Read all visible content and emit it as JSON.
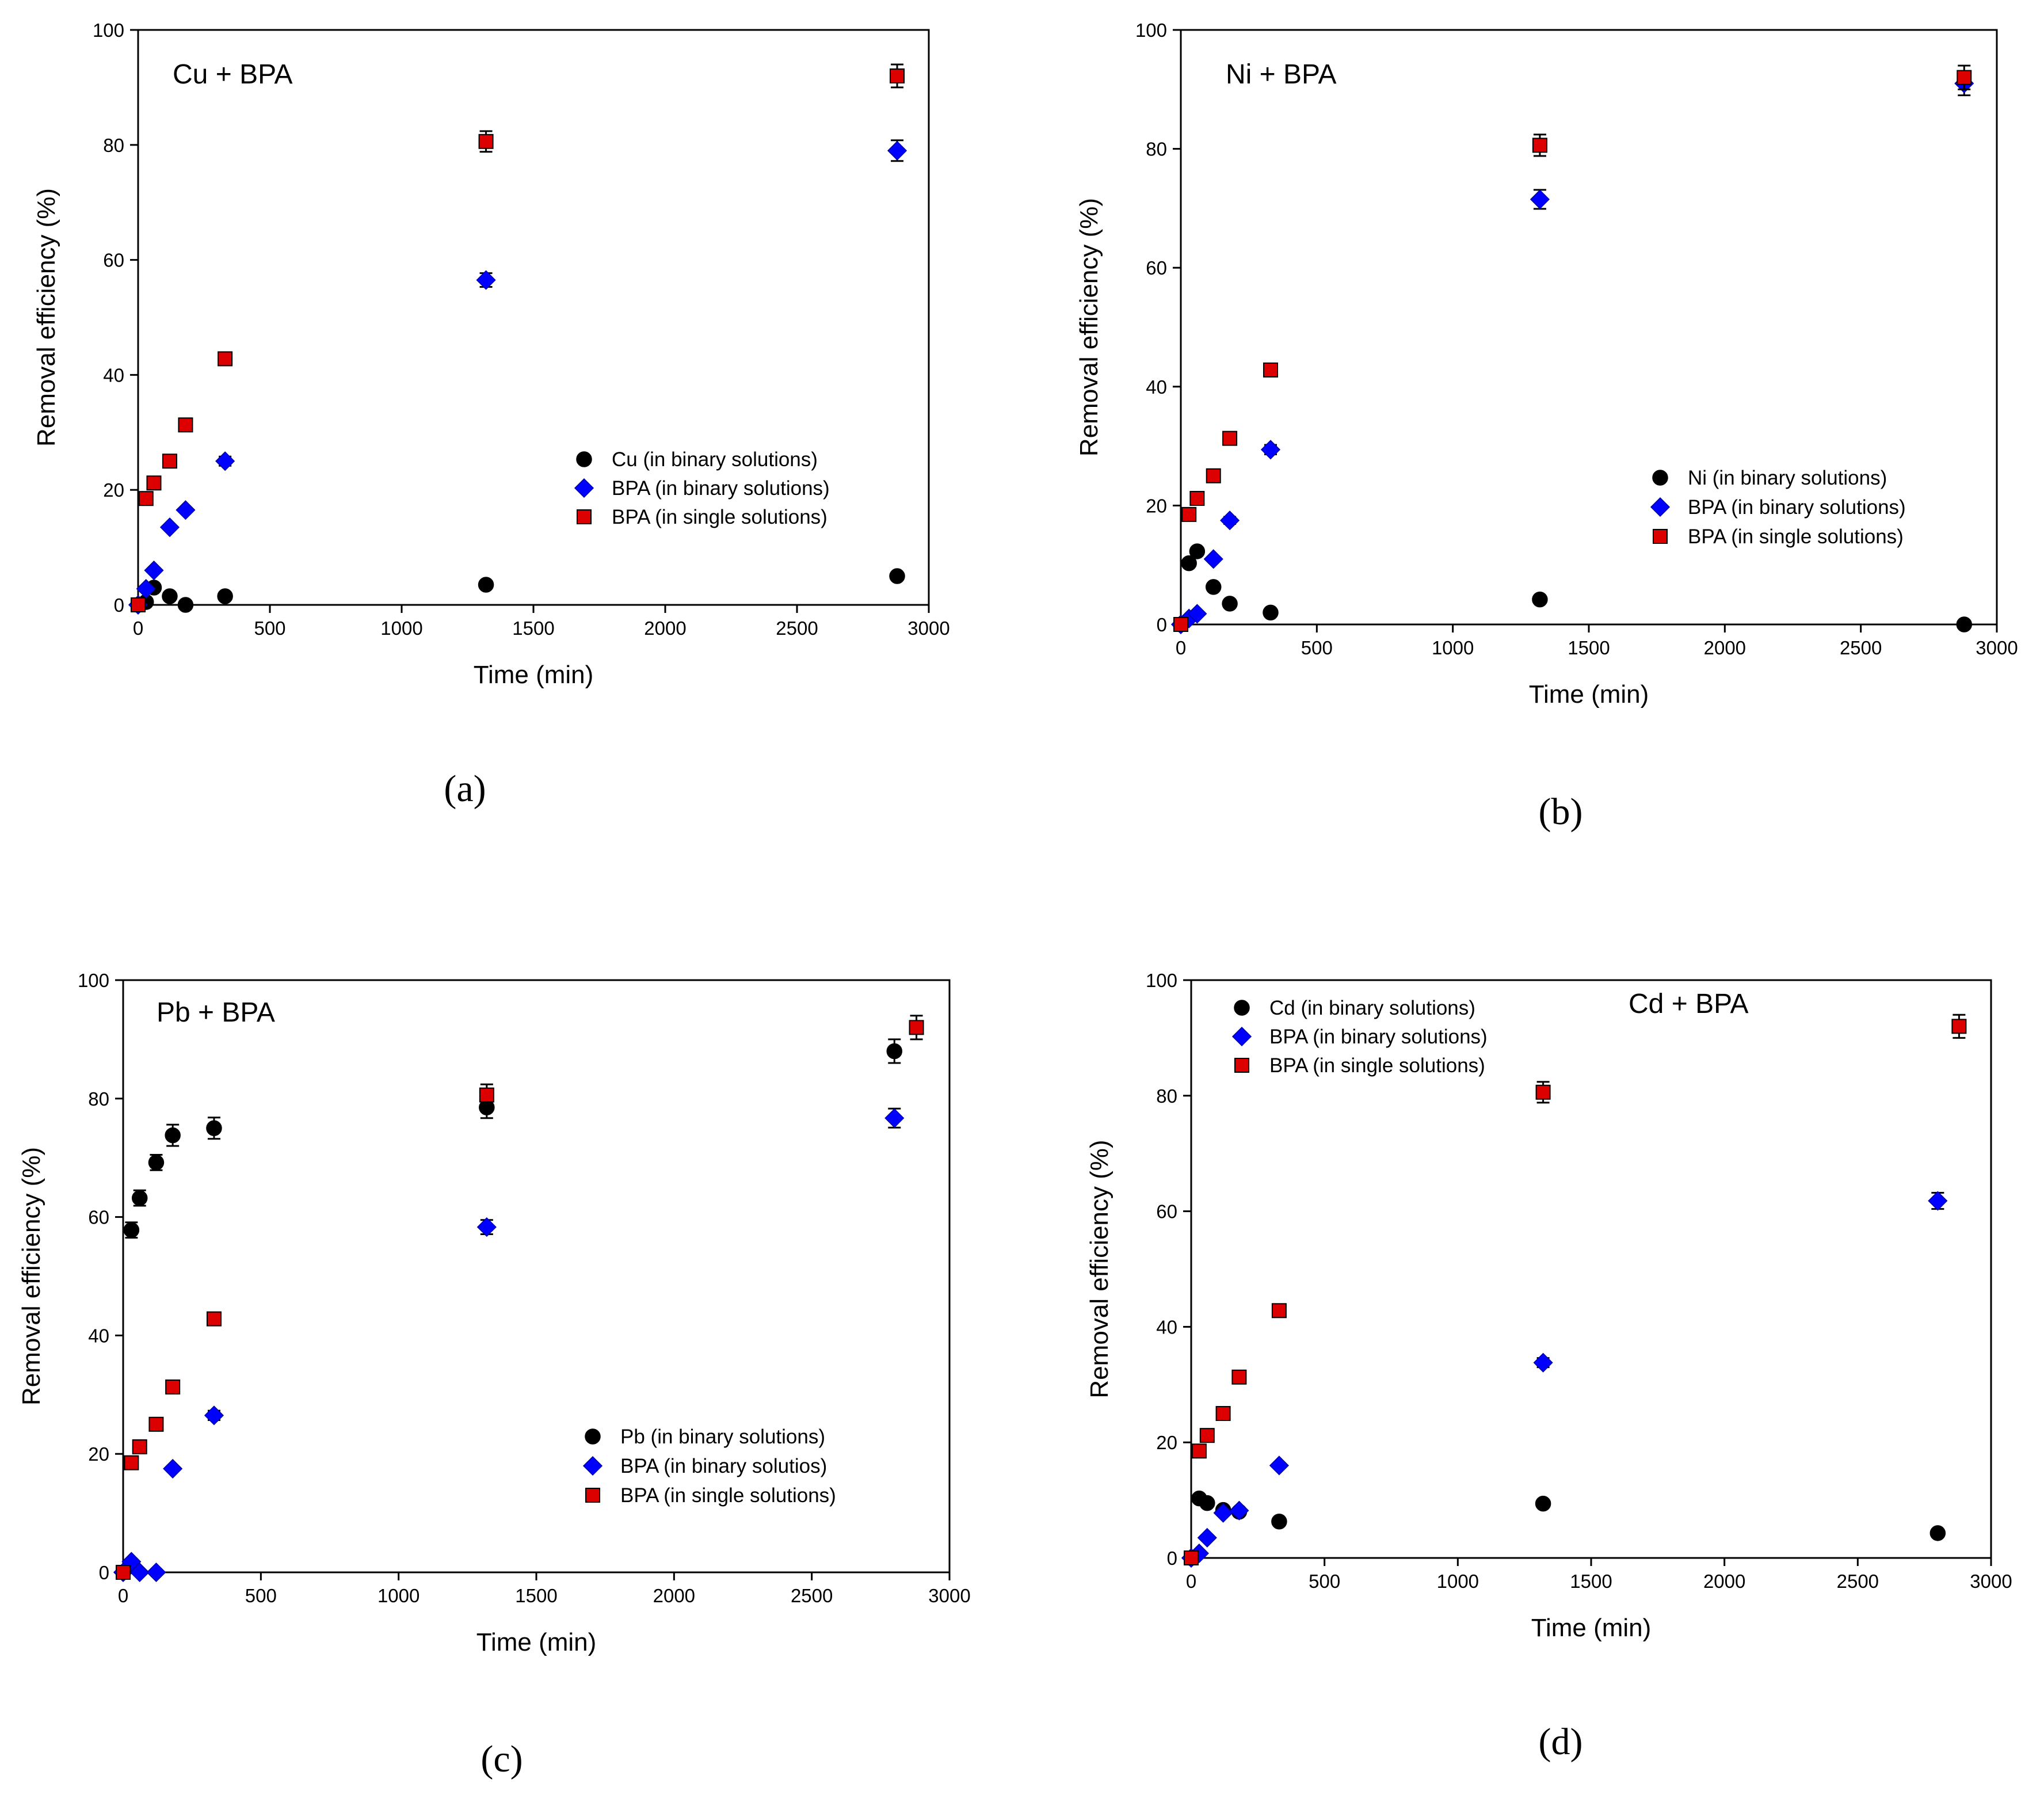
{
  "chart_data": [
    {
      "type": "scatter",
      "panel_label": "(a)",
      "title": "Cu + BPA",
      "xlabel": "Time (min)",
      "ylabel": "Removal efficiency (%)",
      "xlim": [
        0,
        3000
      ],
      "ylim": [
        0,
        100
      ],
      "xticks": [
        0,
        500,
        1000,
        1500,
        2000,
        2500,
        3000
      ],
      "yticks": [
        0,
        20,
        40,
        60,
        80,
        100
      ],
      "legend_position": "center-right",
      "series": [
        {
          "name": "Cu (in binary solutions)",
          "marker": "circle",
          "color": "#000000",
          "x": [
            0,
            30,
            60,
            120,
            180,
            330,
            1320,
            2880
          ],
          "y": [
            0,
            0.5,
            3,
            1.5,
            0,
            1.5,
            3.5,
            5
          ],
          "err": [
            0,
            0,
            0,
            0,
            0,
            0,
            0,
            0
          ]
        },
        {
          "name": "BPA (in binary solutions)",
          "marker": "diamond",
          "color": "#0000ff",
          "x": [
            0,
            30,
            60,
            120,
            180,
            330,
            1320,
            2880
          ],
          "y": [
            0,
            2.8,
            6,
            13.5,
            16.5,
            25,
            56.5,
            79
          ],
          "err": [
            0,
            0,
            0,
            0,
            0,
            0.8,
            1.2,
            1.8
          ]
        },
        {
          "name": "BPA (in single solutions)",
          "marker": "square",
          "color": "#dd0000",
          "x": [
            0,
            30,
            60,
            120,
            180,
            330,
            1320,
            2880
          ],
          "y": [
            0,
            18.5,
            21.2,
            25,
            31.3,
            42.8,
            80.6,
            92
          ],
          "err": [
            0,
            0.6,
            0.6,
            0.6,
            0.6,
            0.8,
            1.8,
            2
          ]
        }
      ]
    },
    {
      "type": "scatter",
      "panel_label": "(b)",
      "title": "Ni + BPA",
      "xlabel": "Time (min)",
      "ylabel": "Removal efficiency (%)",
      "xlim": [
        0,
        3000
      ],
      "ylim": [
        0,
        100
      ],
      "xticks": [
        0,
        500,
        1000,
        1500,
        2000,
        2500,
        3000
      ],
      "yticks": [
        0,
        20,
        40,
        60,
        80,
        100
      ],
      "legend_position": "center-right",
      "series": [
        {
          "name": "Ni (in binary solutions)",
          "marker": "circle",
          "color": "#000000",
          "x": [
            0,
            30,
            60,
            120,
            180,
            330,
            1320,
            2880
          ],
          "y": [
            0,
            10.3,
            12.3,
            6.3,
            3.5,
            2,
            4.2,
            0
          ],
          "err": [
            0,
            0.5,
            0.5,
            0,
            0,
            0,
            0,
            0
          ]
        },
        {
          "name": "BPA (in binary solutions)",
          "marker": "diamond",
          "color": "#0000ff",
          "x": [
            0,
            30,
            60,
            120,
            180,
            330,
            1320,
            2880
          ],
          "y": [
            0,
            1,
            1.8,
            11,
            17.5,
            29.4,
            71.5,
            91
          ],
          "err": [
            0,
            0,
            0,
            0,
            0.6,
            0.8,
            1.6,
            2
          ]
        },
        {
          "name": "BPA (in single solutions)",
          "marker": "square",
          "color": "#dd0000",
          "x": [
            0,
            30,
            60,
            120,
            180,
            330,
            1320,
            2880
          ],
          "y": [
            0,
            18.5,
            21.2,
            25,
            31.3,
            42.8,
            80.6,
            92
          ],
          "err": [
            0,
            0.6,
            0.6,
            0.6,
            0.6,
            0.8,
            1.8,
            2
          ]
        }
      ]
    },
    {
      "type": "scatter",
      "panel_label": "(c)",
      "title": "Pb + BPA",
      "xlabel": "Time (min)",
      "ylabel": "Removal efficiency (%)",
      "xlim": [
        0,
        3000
      ],
      "ylim": [
        0,
        100
      ],
      "xticks": [
        0,
        500,
        1000,
        1500,
        2000,
        2500,
        3000
      ],
      "yticks": [
        0,
        20,
        40,
        60,
        80,
        100
      ],
      "legend_position": "bottom-right",
      "series": [
        {
          "name": "Pb (in binary solutions)",
          "marker": "circle",
          "color": "#000000",
          "x": [
            30,
            60,
            120,
            180,
            330,
            1320,
            2800
          ],
          "y": [
            57.8,
            63.2,
            69.2,
            73.8,
            75,
            78.5,
            88
          ],
          "err": [
            1.3,
            1.3,
            1.3,
            1.8,
            1.8,
            1.8,
            2
          ]
        },
        {
          "name": "BPA (in binary solutios)",
          "marker": "diamond",
          "color": "#0000ff",
          "x": [
            0,
            30,
            60,
            120,
            180,
            330,
            1320,
            2800
          ],
          "y": [
            0,
            1.8,
            0,
            0,
            17.5,
            26.5,
            58.3,
            76.7
          ],
          "err": [
            0,
            0,
            0,
            0,
            0,
            0.8,
            1.2,
            1.6
          ]
        },
        {
          "name": "BPA (in single solutions)",
          "marker": "square",
          "color": "#dd0000",
          "x": [
            0,
            30,
            60,
            120,
            180,
            330,
            1320,
            2880
          ],
          "y": [
            0,
            18.5,
            21.2,
            25,
            31.3,
            42.8,
            80.6,
            92
          ],
          "err": [
            0,
            0.6,
            0.6,
            0.6,
            0.6,
            0.8,
            1.8,
            2
          ]
        }
      ]
    },
    {
      "type": "scatter",
      "panel_label": "(d)",
      "title": "Cd + BPA",
      "xlabel": "Time (min)",
      "ylabel": "Removal efficiency (%)",
      "xlim": [
        0,
        3000
      ],
      "ylim": [
        0,
        100
      ],
      "xticks": [
        0,
        500,
        1000,
        1500,
        2000,
        2500,
        3000
      ],
      "yticks": [
        0,
        20,
        40,
        60,
        80,
        100
      ],
      "legend_position": "top-left",
      "series": [
        {
          "name": "Cd (in binary solutions)",
          "marker": "circle",
          "color": "#000000",
          "x": [
            0,
            30,
            60,
            120,
            180,
            330,
            1320,
            2800
          ],
          "y": [
            0,
            10.3,
            9.5,
            8.3,
            8,
            6.3,
            9.4,
            4.3
          ],
          "err": [
            0,
            0,
            0,
            0,
            0,
            0,
            0,
            0
          ]
        },
        {
          "name": "BPA (in binary solutions)",
          "marker": "diamond",
          "color": "#0000ff",
          "x": [
            0,
            30,
            60,
            120,
            180,
            330,
            1320,
            2800
          ],
          "y": [
            0,
            0.8,
            3.5,
            7.8,
            8.2,
            16,
            33.8,
            61.8
          ],
          "err": [
            0,
            0,
            0,
            0,
            0,
            0,
            0.8,
            1.4
          ]
        },
        {
          "name": "BPA (in single solutions)",
          "marker": "square",
          "color": "#dd0000",
          "x": [
            0,
            30,
            60,
            120,
            180,
            330,
            1320,
            2880
          ],
          "y": [
            0,
            18.5,
            21.2,
            25,
            31.3,
            42.8,
            80.6,
            92
          ],
          "err": [
            0,
            0.6,
            0.6,
            0.6,
            0.6,
            0.8,
            1.8,
            2
          ]
        }
      ]
    }
  ]
}
